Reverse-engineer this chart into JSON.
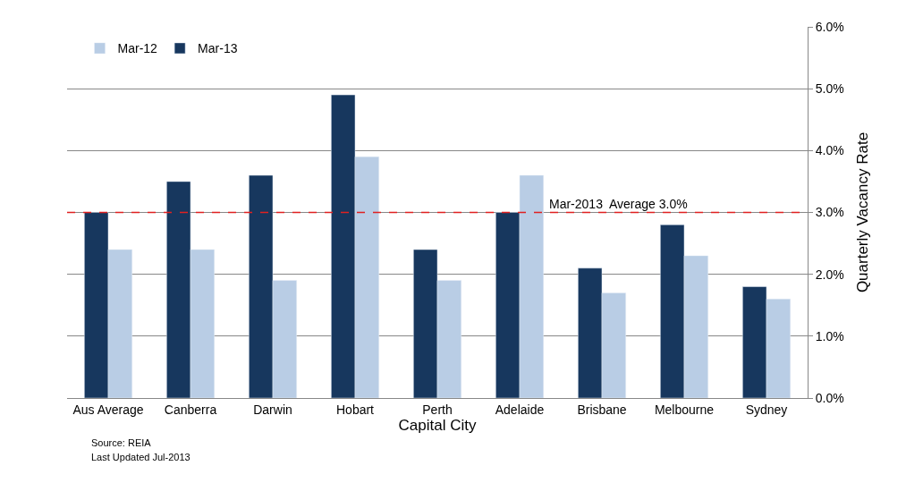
{
  "chart_data": {
    "type": "bar",
    "xlabel": "Capital City",
    "ylabel": "Quarterly Vacancy Rate",
    "categories": [
      "Aus Average",
      "Canberra",
      "Darwin",
      "Hobart",
      "Perth",
      "Adelaide",
      "Brisbane",
      "Melbourne",
      "Sydney"
    ],
    "series": [
      {
        "name": "Mar-13",
        "color": "#17375e",
        "values": [
          3.0,
          3.5,
          3.6,
          4.9,
          2.4,
          3.0,
          2.1,
          2.8,
          1.8
        ]
      },
      {
        "name": "Mar-12",
        "color": "#b9cde5",
        "values": [
          2.4,
          2.4,
          1.9,
          3.9,
          1.9,
          3.6,
          1.7,
          2.3,
          1.6
        ]
      }
    ],
    "ylim": [
      0,
      6
    ],
    "yticks": [
      {
        "value": 0,
        "label": "0.0%"
      },
      {
        "value": 1,
        "label": "1.0%"
      },
      {
        "value": 2,
        "label": "2.0%"
      },
      {
        "value": 3,
        "label": "3.0%"
      },
      {
        "value": 4,
        "label": "4.0%"
      },
      {
        "value": 5,
        "label": "5.0%"
      },
      {
        "value": 6,
        "label": "6.0%"
      }
    ],
    "grid": "y",
    "legend": "top left",
    "ref_lines": [
      {
        "axis": "y",
        "value": 3.0,
        "label": "Mar-2013  Average 3.0%",
        "color": "#e02020",
        "line_style": "dashed"
      }
    ],
    "annotations": [
      "Source: REIA",
      "Last Updated Jul-2013"
    ]
  }
}
